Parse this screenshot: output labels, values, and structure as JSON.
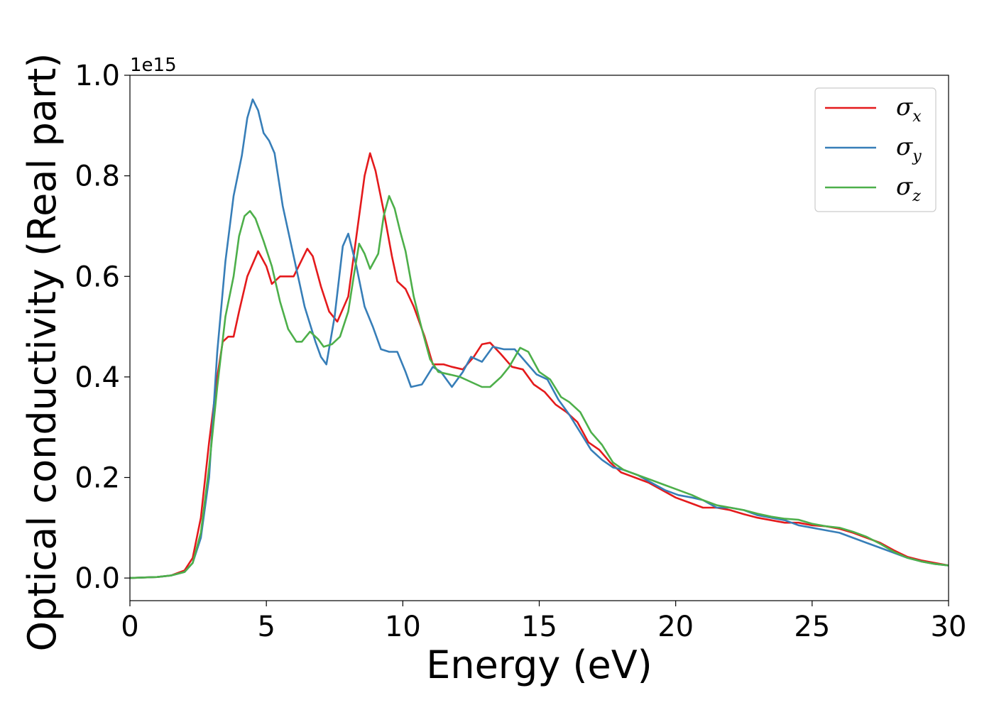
{
  "chart_data": {
    "type": "line",
    "title": "",
    "xlabel": "Energy (eV)",
    "ylabel": "Optical conductivity (Real part)",
    "y_offset_label": "1e15",
    "xlim": [
      0,
      30
    ],
    "ylim": [
      -0.045,
      1.0
    ],
    "xticks": [
      "0",
      "5",
      "10",
      "15",
      "20",
      "25",
      "30"
    ],
    "yticks": [
      "0.0",
      "0.2",
      "0.4",
      "0.6",
      "0.8",
      "1.0"
    ],
    "grid": false,
    "legend_position": "top-right",
    "series": [
      {
        "name": "σx",
        "symbol": "σ",
        "subscript": "x",
        "color": "#e41a1c",
        "points": [
          [
            0,
            0
          ],
          [
            1,
            0.002
          ],
          [
            1.5,
            0.005
          ],
          [
            2,
            0.015
          ],
          [
            2.3,
            0.04
          ],
          [
            2.6,
            0.12
          ],
          [
            2.9,
            0.27
          ],
          [
            3.2,
            0.4
          ],
          [
            3.4,
            0.47
          ],
          [
            3.6,
            0.48
          ],
          [
            3.8,
            0.48
          ],
          [
            4.0,
            0.53
          ],
          [
            4.3,
            0.6
          ],
          [
            4.7,
            0.65
          ],
          [
            5.0,
            0.62
          ],
          [
            5.2,
            0.585
          ],
          [
            5.5,
            0.6
          ],
          [
            6.0,
            0.6
          ],
          [
            6.5,
            0.655
          ],
          [
            6.7,
            0.64
          ],
          [
            7.0,
            0.58
          ],
          [
            7.3,
            0.53
          ],
          [
            7.6,
            0.51
          ],
          [
            8.0,
            0.56
          ],
          [
            8.3,
            0.68
          ],
          [
            8.6,
            0.8
          ],
          [
            8.8,
            0.845
          ],
          [
            9.0,
            0.81
          ],
          [
            9.3,
            0.73
          ],
          [
            9.6,
            0.64
          ],
          [
            9.8,
            0.59
          ],
          [
            10.1,
            0.575
          ],
          [
            10.4,
            0.54
          ],
          [
            10.8,
            0.48
          ],
          [
            11.1,
            0.425
          ],
          [
            11.5,
            0.425
          ],
          [
            11.8,
            0.42
          ],
          [
            12.2,
            0.415
          ],
          [
            12.6,
            0.44
          ],
          [
            12.9,
            0.465
          ],
          [
            13.2,
            0.468
          ],
          [
            13.6,
            0.445
          ],
          [
            14.0,
            0.42
          ],
          [
            14.4,
            0.415
          ],
          [
            14.8,
            0.385
          ],
          [
            15.2,
            0.37
          ],
          [
            15.6,
            0.345
          ],
          [
            16.0,
            0.33
          ],
          [
            16.4,
            0.31
          ],
          [
            16.8,
            0.27
          ],
          [
            17.2,
            0.255
          ],
          [
            17.6,
            0.23
          ],
          [
            18.0,
            0.21
          ],
          [
            18.5,
            0.2
          ],
          [
            19.0,
            0.19
          ],
          [
            19.5,
            0.175
          ],
          [
            20.0,
            0.16
          ],
          [
            20.5,
            0.15
          ],
          [
            21.0,
            0.14
          ],
          [
            21.5,
            0.14
          ],
          [
            22.0,
            0.135
          ],
          [
            22.5,
            0.127
          ],
          [
            23.0,
            0.12
          ],
          [
            23.5,
            0.115
          ],
          [
            24.0,
            0.11
          ],
          [
            24.5,
            0.11
          ],
          [
            25.0,
            0.105
          ],
          [
            25.5,
            0.103
          ],
          [
            26.0,
            0.098
          ],
          [
            26.5,
            0.09
          ],
          [
            27.0,
            0.08
          ],
          [
            27.5,
            0.07
          ],
          [
            28.0,
            0.055
          ],
          [
            28.5,
            0.042
          ],
          [
            29.0,
            0.035
          ],
          [
            29.5,
            0.03
          ],
          [
            30.0,
            0.025
          ]
        ]
      },
      {
        "name": "σy",
        "symbol": "σ",
        "subscript": "y",
        "color": "#377eb8",
        "points": [
          [
            0,
            0
          ],
          [
            1,
            0.002
          ],
          [
            1.5,
            0.005
          ],
          [
            2,
            0.012
          ],
          [
            2.3,
            0.03
          ],
          [
            2.6,
            0.08
          ],
          [
            2.9,
            0.2
          ],
          [
            3.2,
            0.45
          ],
          [
            3.5,
            0.63
          ],
          [
            3.8,
            0.76
          ],
          [
            4.1,
            0.84
          ],
          [
            4.3,
            0.915
          ],
          [
            4.5,
            0.952
          ],
          [
            4.7,
            0.93
          ],
          [
            4.9,
            0.885
          ],
          [
            5.1,
            0.87
          ],
          [
            5.3,
            0.845
          ],
          [
            5.6,
            0.74
          ],
          [
            6.0,
            0.64
          ],
          [
            6.4,
            0.54
          ],
          [
            6.8,
            0.47
          ],
          [
            7.0,
            0.44
          ],
          [
            7.2,
            0.425
          ],
          [
            7.5,
            0.52
          ],
          [
            7.8,
            0.66
          ],
          [
            8.0,
            0.685
          ],
          [
            8.3,
            0.62
          ],
          [
            8.6,
            0.54
          ],
          [
            8.9,
            0.5
          ],
          [
            9.2,
            0.455
          ],
          [
            9.5,
            0.45
          ],
          [
            9.8,
            0.45
          ],
          [
            10.1,
            0.41
          ],
          [
            10.3,
            0.38
          ],
          [
            10.7,
            0.385
          ],
          [
            11.1,
            0.42
          ],
          [
            11.4,
            0.41
          ],
          [
            11.8,
            0.38
          ],
          [
            12.2,
            0.41
          ],
          [
            12.5,
            0.44
          ],
          [
            12.9,
            0.43
          ],
          [
            13.3,
            0.46
          ],
          [
            13.7,
            0.455
          ],
          [
            14.1,
            0.455
          ],
          [
            14.5,
            0.43
          ],
          [
            14.9,
            0.405
          ],
          [
            15.3,
            0.395
          ],
          [
            15.7,
            0.355
          ],
          [
            16.1,
            0.325
          ],
          [
            16.5,
            0.29
          ],
          [
            16.9,
            0.255
          ],
          [
            17.3,
            0.235
          ],
          [
            17.7,
            0.22
          ],
          [
            18.1,
            0.215
          ],
          [
            18.6,
            0.205
          ],
          [
            19.1,
            0.19
          ],
          [
            19.6,
            0.175
          ],
          [
            20.1,
            0.165
          ],
          [
            20.6,
            0.16
          ],
          [
            21.0,
            0.155
          ],
          [
            21.5,
            0.14
          ],
          [
            22.0,
            0.14
          ],
          [
            22.5,
            0.135
          ],
          [
            23.0,
            0.125
          ],
          [
            23.5,
            0.12
          ],
          [
            24.0,
            0.115
          ],
          [
            24.5,
            0.105
          ],
          [
            25.0,
            0.1
          ],
          [
            25.5,
            0.095
          ],
          [
            26.0,
            0.09
          ],
          [
            26.5,
            0.08
          ],
          [
            27.0,
            0.07
          ],
          [
            27.5,
            0.06
          ],
          [
            28.0,
            0.05
          ],
          [
            28.5,
            0.04
          ],
          [
            29.0,
            0.033
          ],
          [
            29.5,
            0.028
          ],
          [
            30.0,
            0.025
          ]
        ]
      },
      {
        "name": "σz",
        "symbol": "σ",
        "subscript": "z",
        "color": "#4daf4a",
        "points": [
          [
            0,
            0
          ],
          [
            1,
            0.002
          ],
          [
            1.5,
            0.005
          ],
          [
            2,
            0.012
          ],
          [
            2.3,
            0.03
          ],
          [
            2.6,
            0.09
          ],
          [
            2.9,
            0.22
          ],
          [
            3.2,
            0.38
          ],
          [
            3.5,
            0.52
          ],
          [
            3.8,
            0.6
          ],
          [
            4.0,
            0.68
          ],
          [
            4.2,
            0.72
          ],
          [
            4.4,
            0.73
          ],
          [
            4.6,
            0.715
          ],
          [
            4.9,
            0.67
          ],
          [
            5.2,
            0.62
          ],
          [
            5.5,
            0.55
          ],
          [
            5.8,
            0.495
          ],
          [
            6.1,
            0.47
          ],
          [
            6.3,
            0.47
          ],
          [
            6.6,
            0.49
          ],
          [
            6.9,
            0.475
          ],
          [
            7.1,
            0.46
          ],
          [
            7.4,
            0.465
          ],
          [
            7.7,
            0.48
          ],
          [
            8.0,
            0.53
          ],
          [
            8.2,
            0.6
          ],
          [
            8.4,
            0.665
          ],
          [
            8.6,
            0.645
          ],
          [
            8.8,
            0.615
          ],
          [
            9.1,
            0.645
          ],
          [
            9.3,
            0.72
          ],
          [
            9.5,
            0.76
          ],
          [
            9.7,
            0.735
          ],
          [
            9.9,
            0.69
          ],
          [
            10.1,
            0.65
          ],
          [
            10.4,
            0.56
          ],
          [
            10.7,
            0.495
          ],
          [
            11.0,
            0.435
          ],
          [
            11.3,
            0.41
          ],
          [
            11.7,
            0.405
          ],
          [
            12.1,
            0.4
          ],
          [
            12.5,
            0.39
          ],
          [
            12.9,
            0.38
          ],
          [
            13.2,
            0.38
          ],
          [
            13.6,
            0.4
          ],
          [
            13.9,
            0.42
          ],
          [
            14.3,
            0.458
          ],
          [
            14.6,
            0.45
          ],
          [
            15.0,
            0.41
          ],
          [
            15.4,
            0.395
          ],
          [
            15.8,
            0.36
          ],
          [
            16.1,
            0.35
          ],
          [
            16.5,
            0.33
          ],
          [
            16.9,
            0.29
          ],
          [
            17.3,
            0.265
          ],
          [
            17.7,
            0.23
          ],
          [
            18.1,
            0.215
          ],
          [
            18.6,
            0.205
          ],
          [
            19.1,
            0.195
          ],
          [
            19.6,
            0.185
          ],
          [
            20.1,
            0.175
          ],
          [
            20.6,
            0.165
          ],
          [
            21.0,
            0.155
          ],
          [
            21.5,
            0.145
          ],
          [
            22.0,
            0.14
          ],
          [
            22.5,
            0.135
          ],
          [
            23.0,
            0.128
          ],
          [
            23.5,
            0.122
          ],
          [
            24.0,
            0.118
          ],
          [
            24.5,
            0.116
          ],
          [
            25.0,
            0.108
          ],
          [
            25.5,
            0.103
          ],
          [
            26.0,
            0.1
          ],
          [
            26.5,
            0.092
          ],
          [
            27.0,
            0.082
          ],
          [
            27.5,
            0.068
          ],
          [
            28.0,
            0.052
          ],
          [
            28.5,
            0.04
          ],
          [
            29.0,
            0.033
          ],
          [
            29.5,
            0.028
          ],
          [
            30.0,
            0.025
          ]
        ]
      }
    ]
  }
}
